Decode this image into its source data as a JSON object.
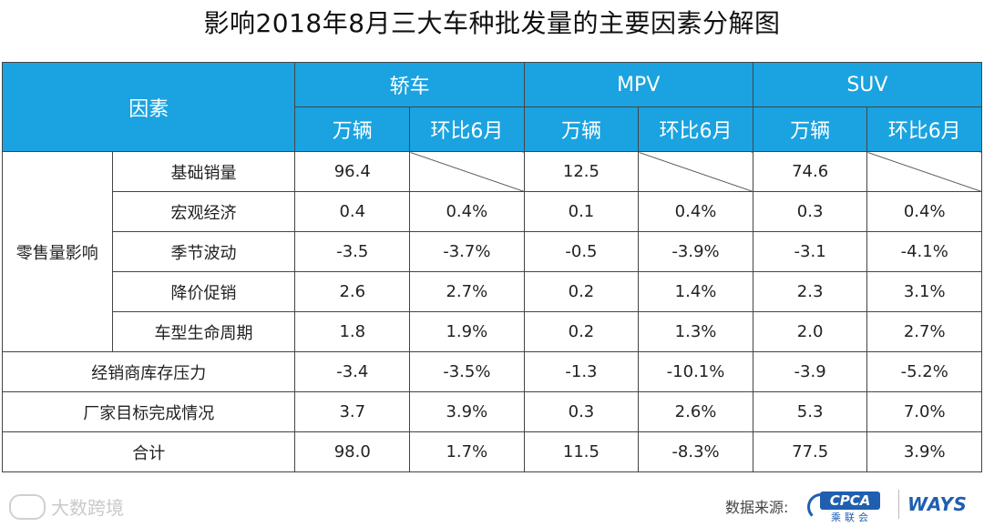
{
  "title": "影响2018年8月三大车种批发量的主要因素分解图",
  "chart_data": {
    "type": "table",
    "header": {
      "factor": "因素",
      "groups": [
        "轿车",
        "MPV",
        "SUV"
      ],
      "sub": [
        "万辆",
        "环比6月"
      ]
    },
    "group_label": "零售量影响",
    "rows": [
      {
        "label": "基础销量",
        "values": [
          "96.4",
          "",
          "12.5",
          "",
          "74.6",
          ""
        ]
      },
      {
        "label": "宏观经济",
        "values": [
          "0.4",
          "0.4%",
          "0.1",
          "0.4%",
          "0.3",
          "0.4%"
        ]
      },
      {
        "label": "季节波动",
        "values": [
          "-3.5",
          "-3.7%",
          "-0.5",
          "-3.9%",
          "-3.1",
          "-4.1%"
        ]
      },
      {
        "label": "降价促销",
        "values": [
          "2.6",
          "2.7%",
          "0.2",
          "1.4%",
          "2.3",
          "3.1%"
        ]
      },
      {
        "label": "车型生命周期",
        "values": [
          "1.8",
          "1.9%",
          "0.2",
          "1.3%",
          "2.0",
          "2.7%"
        ]
      },
      {
        "label": "经销商库存压力",
        "values": [
          "-3.4",
          "-3.5%",
          "-1.3",
          "-10.1%",
          "-3.9",
          "-5.2%"
        ]
      },
      {
        "label": "厂家目标完成情况",
        "values": [
          "3.7",
          "3.9%",
          "0.3",
          "2.6%",
          "5.3",
          "7.0%"
        ]
      },
      {
        "label": "合计",
        "values": [
          "98.0",
          "1.7%",
          "11.5",
          "-8.3%",
          "77.5",
          "3.9%"
        ]
      }
    ]
  },
  "colors": {
    "header_bg": "#1aa3e0",
    "negative": "#e02020"
  },
  "footer": {
    "watermark": "大数跨境",
    "source_label": "数据来源:",
    "cpca_logo_text": "CPCA",
    "cpca_sub": "乘联会",
    "ways_logo_text": "WAYS"
  }
}
